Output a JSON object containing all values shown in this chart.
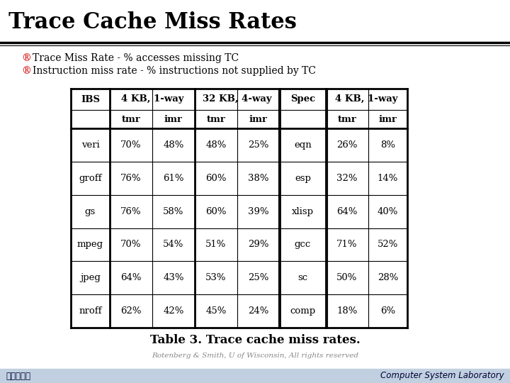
{
  "title": "Trace Cache Miss Rates",
  "bullet1": "Trace Miss Rate - % accesses missing TC",
  "bullet2": "Instruction miss rate - % instructions not supplied by TC",
  "table_caption": "Table 3. Trace cache miss rates.",
  "credit": "Rotenberg & Smith, U of Wisconsin, All rights reserved",
  "footer_left": "高麗大學校",
  "footer_right": "Computer System Laboratory",
  "bg_color": "#ffffff",
  "footer_color": "#c0d0e0",
  "title_color": "#000000",
  "bullet_color": "#cc0000",
  "data_rows": [
    [
      "veri",
      "70%",
      "48%",
      "48%",
      "25%",
      "eqn",
      "26%",
      "8%"
    ],
    [
      "groff",
      "76%",
      "61%",
      "60%",
      "38%",
      "esp",
      "32%",
      "14%"
    ],
    [
      "gs",
      "76%",
      "58%",
      "60%",
      "39%",
      "xlisp",
      "64%",
      "40%"
    ],
    [
      "mpeg",
      "70%",
      "54%",
      "51%",
      "29%",
      "gcc",
      "71%",
      "52%"
    ],
    [
      "jpeg",
      "64%",
      "43%",
      "53%",
      "25%",
      "sc",
      "50%",
      "28%"
    ],
    [
      "nroff",
      "62%",
      "42%",
      "45%",
      "24%",
      "comp",
      "18%",
      "6%"
    ]
  ]
}
